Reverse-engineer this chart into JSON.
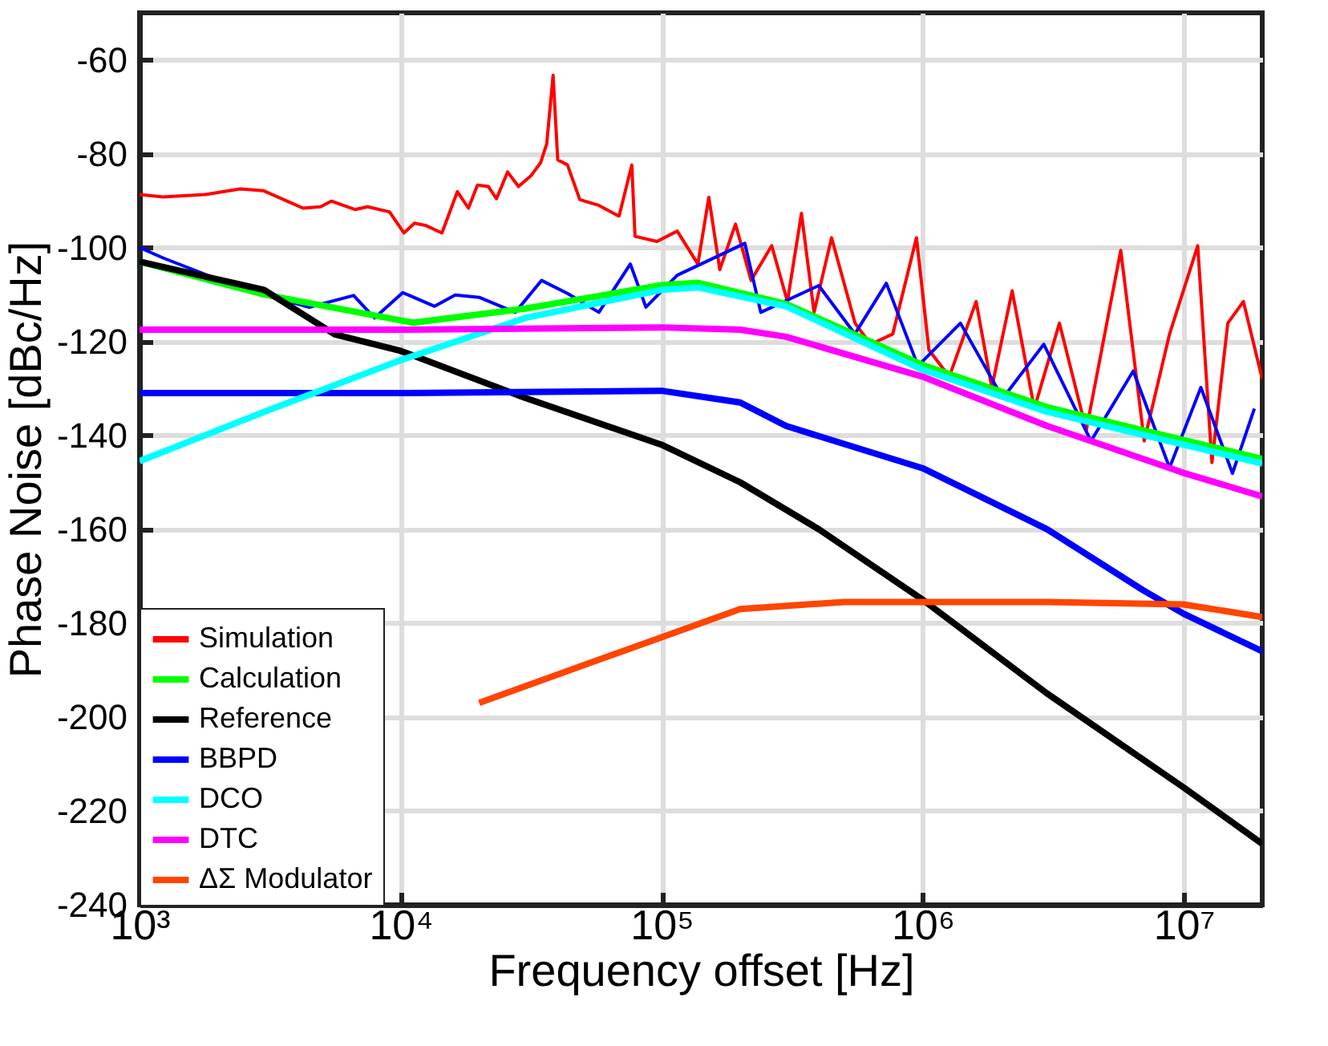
{
  "chart_data": {
    "type": "line",
    "xlabel": "Frequency offset [Hz]",
    "ylabel": "Phase Noise [dBc/Hz]",
    "log": "x",
    "grid": true,
    "legend": "bottom left",
    "line_style": "solid",
    "marker": "none",
    "xlim": [
      1000,
      20000000
    ],
    "xticks": [
      {
        "value": 1000,
        "label": "10³"
      },
      {
        "value": 10000,
        "label": "10⁴"
      },
      {
        "value": 100000,
        "label": "10⁵"
      },
      {
        "value": 1000000,
        "label": "10⁶"
      },
      {
        "value": 10000000,
        "label": "10⁷"
      }
    ],
    "ylim": [
      -240,
      -50
    ],
    "yticks": [
      -240,
      -220,
      -200,
      -180,
      -160,
      -140,
      -120,
      -100,
      -80,
      -60
    ],
    "series": [
      {
        "name": "Simulation",
        "color": "#ff0000",
        "x": [
          1000,
          1230,
          1790,
          2430,
          2990,
          4230,
          4940,
          5430,
          6690,
          7470,
          9070,
          10300,
          11300,
          12500,
          14400,
          16500,
          18200,
          19700,
          21700,
          23300,
          25700,
          28300,
          31600,
          34400,
          36300,
          38400,
          40000,
          43600,
          48600,
          57400,
          68700,
          76900,
          79100,
          96000,
          114800,
          137700,
          151700,
          167100,
          191900,
          220300,
          264200,
          303400,
          343400,
          383800,
          447700,
          551000,
          632000,
          768500,
          947100,
          1057000,
          1265000,
          1603000,
          1841000,
          2203000,
          2679000,
          3342000,
          4236000,
          5741000,
          7063000,
          8831000,
          11320000,
          12830000,
          14760000,
          16940000,
          20000000
        ],
        "values": [
          -88.7,
          -89.2,
          -88.7,
          -87.5,
          -87.9,
          -91.6,
          -91.3,
          -90.1,
          -91.9,
          -91.3,
          -92.4,
          -96.9,
          -94.8,
          -95.3,
          -96.9,
          -88.1,
          -91.6,
          -86.7,
          -87.0,
          -89.6,
          -83.9,
          -87.0,
          -84.7,
          -81.9,
          -77.9,
          -63.3,
          -81.3,
          -82.4,
          -89.8,
          -91.0,
          -93.3,
          -82.4,
          -97.6,
          -98.7,
          -96.5,
          -103.5,
          -89.3,
          -104.7,
          -95.0,
          -107.0,
          -99.6,
          -111.5,
          -92.7,
          -113.8,
          -97.9,
          -116.1,
          -120.6,
          -118.4,
          -97.9,
          -121.8,
          -127.5,
          -111.5,
          -129.8,
          -109.2,
          -134.3,
          -116.1,
          -138.9,
          -100.6,
          -141.2,
          -118.4,
          -99.6,
          -145.8,
          -116.1,
          -111.5,
          -128
        ]
      },
      {
        "color": "#0000ff",
        "x": [
          1000,
          1230,
          2450,
          4470,
          6610,
          7940,
          10200,
          13500,
          16200,
          20000,
          27500,
          34700,
          43700,
          57500,
          75900,
          87100,
          114800,
          208400,
          239900,
          400000,
          550000,
          726100,
          959900,
          1396000,
          2028000,
          2911000,
          4416000,
          6412000,
          8831000,
          11640000,
          15380000,
          18660000
        ],
        "values": [
          -100,
          -102.2,
          -108.7,
          -112.7,
          -110.2,
          -115.0,
          -109.6,
          -112.5,
          -110.1,
          -110.6,
          -113.8,
          -107.0,
          -109.8,
          -113.8,
          -103.5,
          -112.7,
          -105.9,
          -99.1,
          -113.8,
          -108.1,
          -118.4,
          -107.6,
          -125.2,
          -116.1,
          -132.1,
          -120.6,
          -141.2,
          -126.3,
          -146.9,
          -129.8,
          -148.1,
          -134.3
        ]
      },
      {
        "name": "Calculation",
        "color": "#00ff00",
        "x": [
          1000,
          3000,
          10000,
          11200,
          30000,
          100000,
          138000,
          300000,
          1000000,
          3000000,
          10000000,
          20000000
        ],
        "values": [
          -103,
          -110,
          -115.5,
          -116,
          -113,
          -108,
          -107.5,
          -112,
          -125,
          -134,
          -141,
          -145
        ]
      },
      {
        "name": "Reference",
        "color": "#000000",
        "x": [
          1000,
          3000,
          5600,
          10000,
          30000,
          100000,
          200000,
          400000,
          1000000,
          3000000,
          10000000,
          20000000
        ],
        "values": [
          -103,
          -109,
          -118.5,
          -122,
          -132,
          -142,
          -150,
          -160,
          -175,
          -195,
          -215,
          -227
        ]
      },
      {
        "name": "BBPD",
        "color": "#0000ff",
        "x": [
          1000,
          10000,
          100000,
          200000,
          300000,
          1000000,
          3000000,
          7000000,
          10000000,
          20000000
        ],
        "values": [
          -131,
          -131,
          -130.5,
          -133,
          -138,
          -147,
          -160,
          -173,
          -178,
          -186
        ]
      },
      {
        "name": "DCO",
        "color": "#00ffff",
        "x": [
          1000,
          3000,
          10000,
          30000,
          100000,
          138000,
          300000,
          1000000,
          3000000,
          10000000,
          20000000
        ],
        "values": [
          -145.5,
          -135,
          -124,
          -115,
          -109,
          -108.5,
          -112.5,
          -126,
          -135,
          -142,
          -146
        ]
      },
      {
        "name": "DTC",
        "color": "#ff00ff",
        "x": [
          1000,
          10000,
          100000,
          200000,
          300000,
          1000000,
          3000000,
          10000000,
          20000000
        ],
        "values": [
          -117.5,
          -117.5,
          -117,
          -117.5,
          -119,
          -127.5,
          -138,
          -148,
          -153
        ]
      },
      {
        "name": "ΔΣ Modulator",
        "color": "#ff4500",
        "x": [
          20000,
          50000,
          100000,
          200000,
          500000,
          1000000,
          3000000,
          10000000,
          20000000
        ],
        "values": [
          -197,
          -189,
          -183,
          -177,
          -175.5,
          -175.5,
          -175.5,
          -176,
          -178.7
        ]
      }
    ]
  }
}
